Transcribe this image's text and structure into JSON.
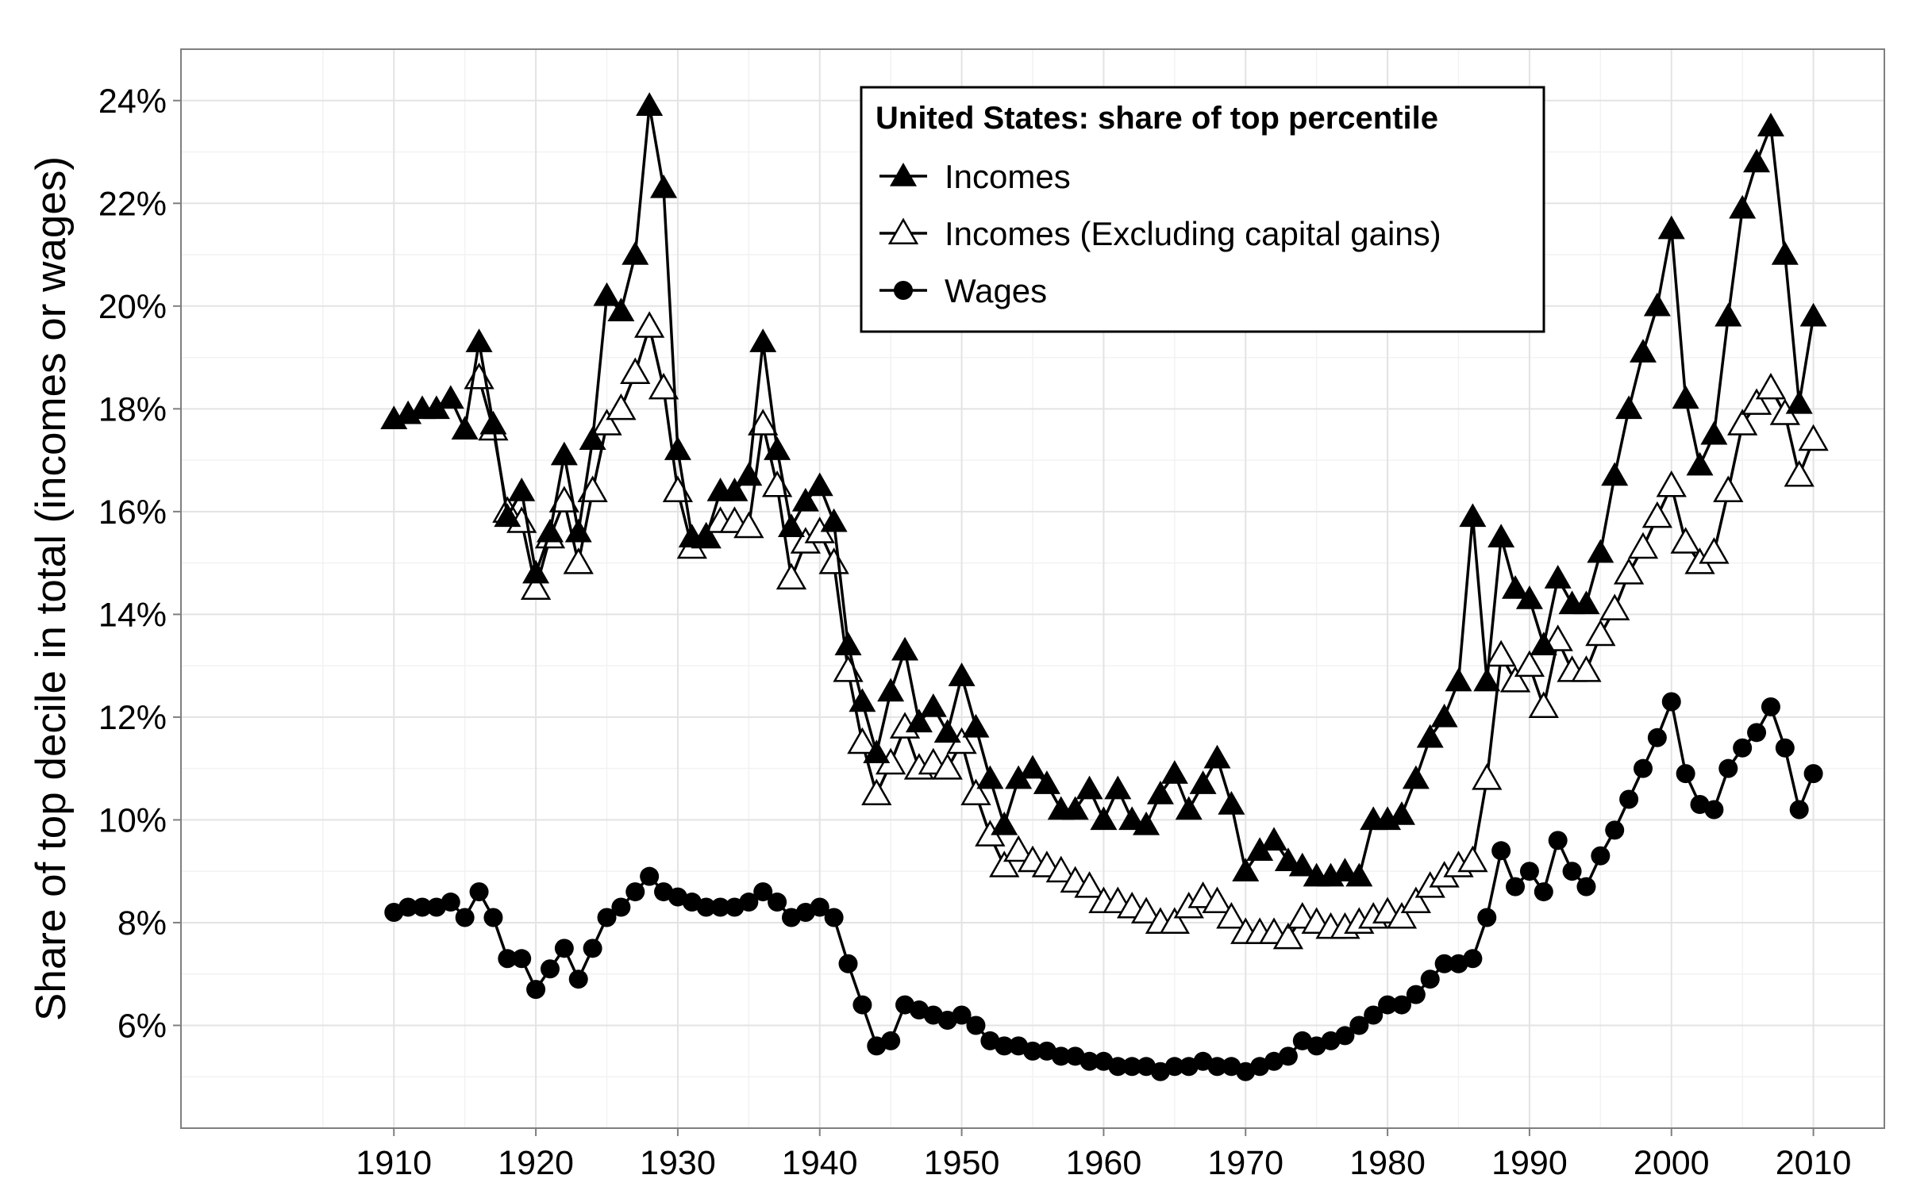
{
  "chart_data": {
    "type": "line",
    "title": "",
    "xlabel": "",
    "ylabel": "Share of top decile in total (incomes or wages)",
    "xlim": [
      1895,
      2015
    ],
    "ylim": [
      4.0,
      25.0
    ],
    "x_ticks": [
      1910,
      1920,
      1930,
      1940,
      1950,
      1960,
      1970,
      1980,
      1990,
      2000,
      2010
    ],
    "x_tick_labels": [
      "1910",
      "1920",
      "1930",
      "1940",
      "1950",
      "1960",
      "1970",
      "1980",
      "1990",
      "2000",
      "2010"
    ],
    "y_ticks": [
      6,
      8,
      10,
      12,
      14,
      16,
      18,
      20,
      22,
      24
    ],
    "y_tick_labels": [
      "6%",
      "8%",
      "10%",
      "12%",
      "14%",
      "16%",
      "18%",
      "20%",
      "22%",
      "24%"
    ],
    "grid": true,
    "legend": {
      "title": "United States: share of top percentile",
      "position": "top-center"
    },
    "series": [
      {
        "name": "Incomes",
        "marker": "filled-triangle",
        "x": [
          1910,
          1911,
          1912,
          1913,
          1914,
          1915,
          1916,
          1917,
          1918,
          1919,
          1920,
          1921,
          1922,
          1923,
          1924,
          1925,
          1926,
          1927,
          1928,
          1929,
          1930,
          1931,
          1932,
          1933,
          1934,
          1935,
          1936,
          1937,
          1938,
          1939,
          1940,
          1941,
          1942,
          1943,
          1944,
          1945,
          1946,
          1947,
          1948,
          1949,
          1950,
          1951,
          1952,
          1953,
          1954,
          1955,
          1956,
          1957,
          1958,
          1959,
          1960,
          1961,
          1962,
          1963,
          1964,
          1965,
          1966,
          1967,
          1968,
          1969,
          1970,
          1971,
          1972,
          1973,
          1974,
          1975,
          1976,
          1977,
          1978,
          1979,
          1980,
          1981,
          1982,
          1983,
          1984,
          1985,
          1986,
          1987,
          1988,
          1989,
          1990,
          1991,
          1992,
          1993,
          1994,
          1995,
          1996,
          1997,
          1998,
          1999,
          2000,
          2001,
          2002,
          2003,
          2004,
          2005,
          2006,
          2007,
          2008,
          2009,
          2010
        ],
        "values": [
          17.8,
          17.9,
          18.0,
          18.0,
          18.2,
          17.6,
          19.3,
          17.7,
          15.9,
          16.4,
          14.8,
          15.6,
          17.1,
          15.6,
          17.4,
          20.2,
          19.9,
          21.0,
          23.9,
          22.3,
          17.2,
          15.5,
          15.5,
          16.4,
          16.4,
          16.7,
          19.3,
          17.2,
          15.7,
          16.2,
          16.5,
          15.8,
          13.4,
          12.3,
          11.3,
          12.5,
          13.3,
          11.9,
          12.2,
          11.7,
          12.8,
          11.8,
          10.8,
          9.9,
          10.8,
          11.0,
          10.7,
          10.2,
          10.2,
          10.6,
          10.0,
          10.6,
          10.0,
          9.9,
          10.5,
          10.9,
          10.2,
          10.7,
          11.2,
          10.3,
          9.0,
          9.4,
          9.6,
          9.2,
          9.1,
          8.9,
          8.9,
          9.0,
          8.9,
          10.0,
          10.0,
          10.1,
          10.8,
          11.6,
          12.0,
          12.7,
          15.9,
          12.7,
          15.5,
          14.5,
          14.3,
          13.4,
          14.7,
          14.2,
          14.2,
          15.2,
          16.7,
          18.0,
          19.1,
          20.0,
          21.5,
          18.2,
          16.9,
          17.5,
          19.8,
          21.9,
          22.8,
          23.5,
          21.0,
          18.1,
          19.8
        ]
      },
      {
        "name": "Incomes (Excluding capital gains)",
        "marker": "open-triangle",
        "x": [
          1916,
          1917,
          1918,
          1919,
          1920,
          1921,
          1922,
          1923,
          1924,
          1925,
          1926,
          1927,
          1928,
          1929,
          1930,
          1931,
          1932,
          1933,
          1934,
          1935,
          1936,
          1937,
          1938,
          1939,
          1940,
          1941,
          1942,
          1943,
          1944,
          1945,
          1946,
          1947,
          1948,
          1949,
          1950,
          1951,
          1952,
          1953,
          1954,
          1955,
          1956,
          1957,
          1958,
          1959,
          1960,
          1961,
          1962,
          1963,
          1964,
          1965,
          1966,
          1967,
          1968,
          1969,
          1970,
          1971,
          1972,
          1973,
          1974,
          1975,
          1976,
          1977,
          1978,
          1979,
          1980,
          1981,
          1982,
          1983,
          1984,
          1985,
          1986,
          1987,
          1988,
          1989,
          1990,
          1991,
          1992,
          1993,
          1994,
          1995,
          1996,
          1997,
          1998,
          1999,
          2000,
          2001,
          2002,
          2003,
          2004,
          2005,
          2006,
          2007,
          2008,
          2009,
          2010
        ],
        "values": [
          18.6,
          17.6,
          16.0,
          15.8,
          14.5,
          15.5,
          16.2,
          15.0,
          16.4,
          17.7,
          18.0,
          18.7,
          19.6,
          18.4,
          16.4,
          15.3,
          15.5,
          15.8,
          15.8,
          15.7,
          17.7,
          16.5,
          14.7,
          15.4,
          15.6,
          15.0,
          12.9,
          11.5,
          10.5,
          11.1,
          11.8,
          11.0,
          11.1,
          11.0,
          11.5,
          10.5,
          9.7,
          9.1,
          9.4,
          9.2,
          9.1,
          9.0,
          8.8,
          8.7,
          8.4,
          8.4,
          8.3,
          8.2,
          8.0,
          8.0,
          8.3,
          8.5,
          8.4,
          8.1,
          7.8,
          7.8,
          7.8,
          7.7,
          8.1,
          8.0,
          7.9,
          7.9,
          8.0,
          8.1,
          8.2,
          8.1,
          8.4,
          8.7,
          8.9,
          9.1,
          9.2,
          10.8,
          13.2,
          12.7,
          13.0,
          12.2,
          13.5,
          12.9,
          12.9,
          13.6,
          14.1,
          14.8,
          15.3,
          15.9,
          16.5,
          15.4,
          15.0,
          15.2,
          16.4,
          17.7,
          18.1,
          18.4,
          17.9,
          16.7,
          17.4
        ]
      },
      {
        "name": "Wages",
        "marker": "filled-circle",
        "x": [
          1910,
          1911,
          1912,
          1913,
          1914,
          1915,
          1916,
          1917,
          1918,
          1919,
          1920,
          1921,
          1922,
          1923,
          1924,
          1925,
          1926,
          1927,
          1928,
          1929,
          1930,
          1931,
          1932,
          1933,
          1934,
          1935,
          1936,
          1937,
          1938,
          1939,
          1940,
          1941,
          1942,
          1943,
          1944,
          1945,
          1946,
          1947,
          1948,
          1949,
          1950,
          1951,
          1952,
          1953,
          1954,
          1955,
          1956,
          1957,
          1958,
          1959,
          1960,
          1961,
          1962,
          1963,
          1964,
          1965,
          1966,
          1967,
          1968,
          1969,
          1970,
          1971,
          1972,
          1973,
          1974,
          1975,
          1976,
          1977,
          1978,
          1979,
          1980,
          1981,
          1982,
          1983,
          1984,
          1985,
          1986,
          1987,
          1988,
          1989,
          1990,
          1991,
          1992,
          1993,
          1994,
          1995,
          1996,
          1997,
          1998,
          1999,
          2000,
          2001,
          2002,
          2003,
          2004,
          2005,
          2006,
          2007,
          2008,
          2009,
          2010
        ],
        "values": [
          8.2,
          8.3,
          8.3,
          8.3,
          8.4,
          8.1,
          8.6,
          8.1,
          7.3,
          7.3,
          6.7,
          7.1,
          7.5,
          6.9,
          7.5,
          8.1,
          8.3,
          8.6,
          8.9,
          8.6,
          8.5,
          8.4,
          8.3,
          8.3,
          8.3,
          8.4,
          8.6,
          8.4,
          8.1,
          8.2,
          8.3,
          8.1,
          7.2,
          6.4,
          5.6,
          5.7,
          6.4,
          6.3,
          6.2,
          6.1,
          6.2,
          6.0,
          5.7,
          5.6,
          5.6,
          5.5,
          5.5,
          5.4,
          5.4,
          5.3,
          5.3,
          5.2,
          5.2,
          5.2,
          5.1,
          5.2,
          5.2,
          5.3,
          5.2,
          5.2,
          5.1,
          5.2,
          5.3,
          5.4,
          5.7,
          5.6,
          5.7,
          5.8,
          6.0,
          6.2,
          6.4,
          6.4,
          6.6,
          6.9,
          7.2,
          7.2,
          7.3,
          8.1,
          9.4,
          8.7,
          9.0,
          8.6,
          9.6,
          9.0,
          8.7,
          9.3,
          9.8,
          10.4,
          11.0,
          11.6,
          12.3,
          10.9,
          10.3,
          10.2,
          11.0,
          11.4,
          11.7,
          12.2,
          11.4,
          10.2,
          10.9
        ]
      }
    ]
  }
}
